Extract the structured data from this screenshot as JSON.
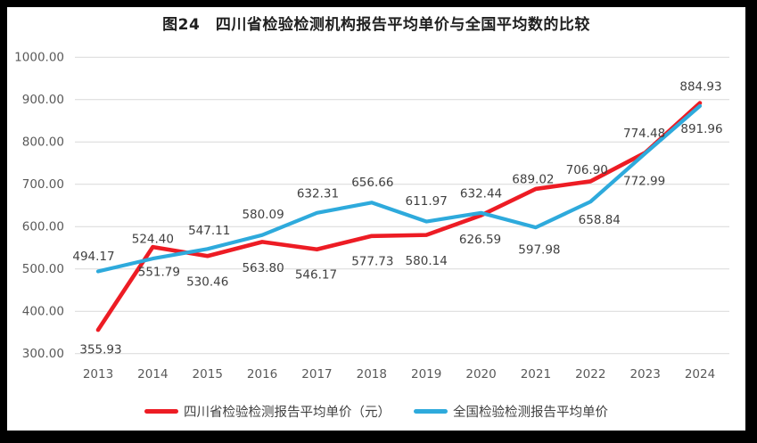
{
  "title": "图24　四川省检验检测机构报告平均单价与全国平均数的比较",
  "chart_data": {
    "type": "line",
    "title": "图24　四川省检验检测机构报告平均单价与全国平均数的比较",
    "categories": [
      "2013",
      "2014",
      "2015",
      "2016",
      "2017",
      "2018",
      "2019",
      "2020",
      "2021",
      "2022",
      "2023",
      "2024"
    ],
    "series": [
      {
        "name": "四川省检验检测报告平均单价（元）",
        "color": "#ed1c24",
        "values": [
          355.93,
          551.79,
          530.46,
          563.8,
          546.17,
          577.73,
          580.14,
          626.59,
          689.02,
          706.9,
          774.48,
          891.96
        ],
        "labels": [
          "355.93",
          "551.79",
          "530.46",
          "563.80",
          "546.17",
          "577.73",
          "580.14",
          "626.59",
          "689.02",
          "706.90",
          "774.48",
          "891.96"
        ],
        "label_offsets": [
          [
            3,
            22
          ],
          [
            7,
            28
          ],
          [
            0,
            29
          ],
          [
            1,
            29
          ],
          [
            -1,
            28
          ],
          [
            1,
            28
          ],
          [
            0,
            29
          ],
          [
            -1,
            27
          ],
          [
            -3,
            -11
          ],
          [
            -4,
            -13
          ],
          [
            -1,
            -22
          ],
          [
            2,
            29
          ]
        ]
      },
      {
        "name": "全国检验检测报告平均单价",
        "color": "#2eaadc",
        "values": [
          494.17,
          524.4,
          547.11,
          580.09,
          632.31,
          656.66,
          611.97,
          632.44,
          597.98,
          658.84,
          772.99,
          884.93
        ],
        "labels": [
          "494.17",
          "524.40",
          "547.11",
          "580.09",
          "632.31",
          "656.66",
          "611.97",
          "632.44",
          "597.98",
          "658.84",
          "772.99",
          "884.93"
        ],
        "label_offsets": [
          [
            -5,
            -17
          ],
          [
            0,
            -22
          ],
          [
            2,
            -21
          ],
          [
            1,
            -23
          ],
          [
            1,
            -22
          ],
          [
            1,
            -23
          ],
          [
            0,
            -23
          ],
          [
            0,
            -22
          ],
          [
            4,
            25
          ],
          [
            10,
            20
          ],
          [
            -1,
            31
          ],
          [
            1,
            -22
          ]
        ]
      }
    ],
    "y_ticks": [
      "1000.00",
      "900.00",
      "800.00",
      "700.00",
      "600.00",
      "500.00",
      "400.00",
      "300.00"
    ],
    "y_tick_values": [
      1000,
      900,
      800,
      700,
      600,
      500,
      400,
      300
    ],
    "ylim": [
      300,
      1000
    ],
    "xlabel": "",
    "ylabel": "",
    "grid": true,
    "gridline_color": "#d9d9d9",
    "axis_text_color": "#595959",
    "data_label_color": "#404040",
    "legend_position": "bottom"
  }
}
